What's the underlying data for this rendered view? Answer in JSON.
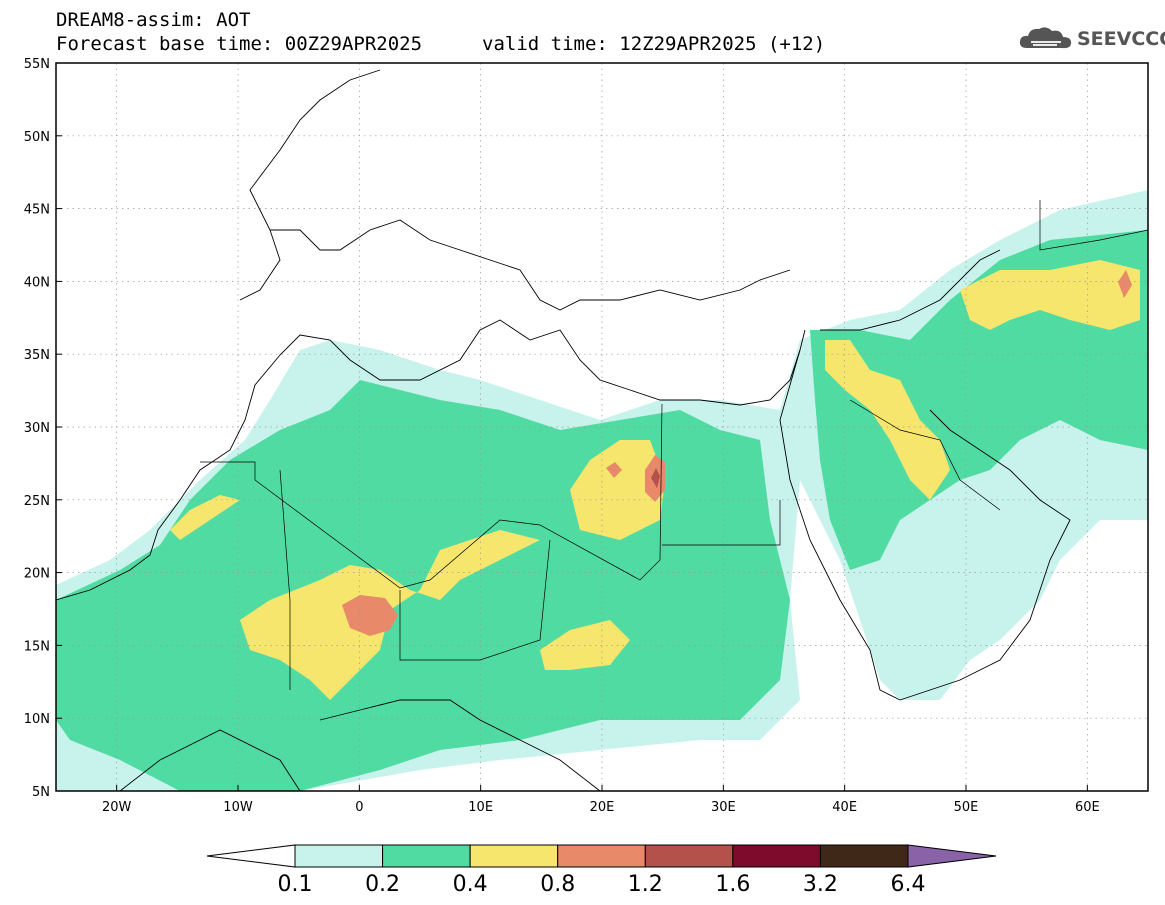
{
  "header": {
    "title_line1": "DREAM8-assim: AOT",
    "base_time": "Forecast base time: 00Z29APR2025",
    "valid_time": "valid time: 12Z29APR2025 (+12)"
  },
  "logo": {
    "text": "SEEVCCC",
    "icon": "cloud-icon"
  },
  "map": {
    "lon_range": [
      -25,
      65
    ],
    "lat_range": [
      5,
      55
    ],
    "lon_ticks": [
      "20W",
      "10W",
      "0",
      "10E",
      "20E",
      "30E",
      "40E",
      "50E",
      "60E"
    ],
    "lat_ticks": [
      "55N",
      "50N",
      "45N",
      "40N",
      "35N",
      "30N",
      "25N",
      "20N",
      "15N",
      "10N",
      "5N"
    ]
  },
  "colorbar": {
    "levels": [
      "0.1",
      "0.2",
      "0.4",
      "0.8",
      "1.2",
      "1.6",
      "3.2",
      "6.4"
    ],
    "colors": [
      "#c8f2ec",
      "#50dba2",
      "#f7e66e",
      "#e8896a",
      "#b3514a",
      "#7e0a2c",
      "#402818",
      "#8a62a8"
    ]
  }
}
